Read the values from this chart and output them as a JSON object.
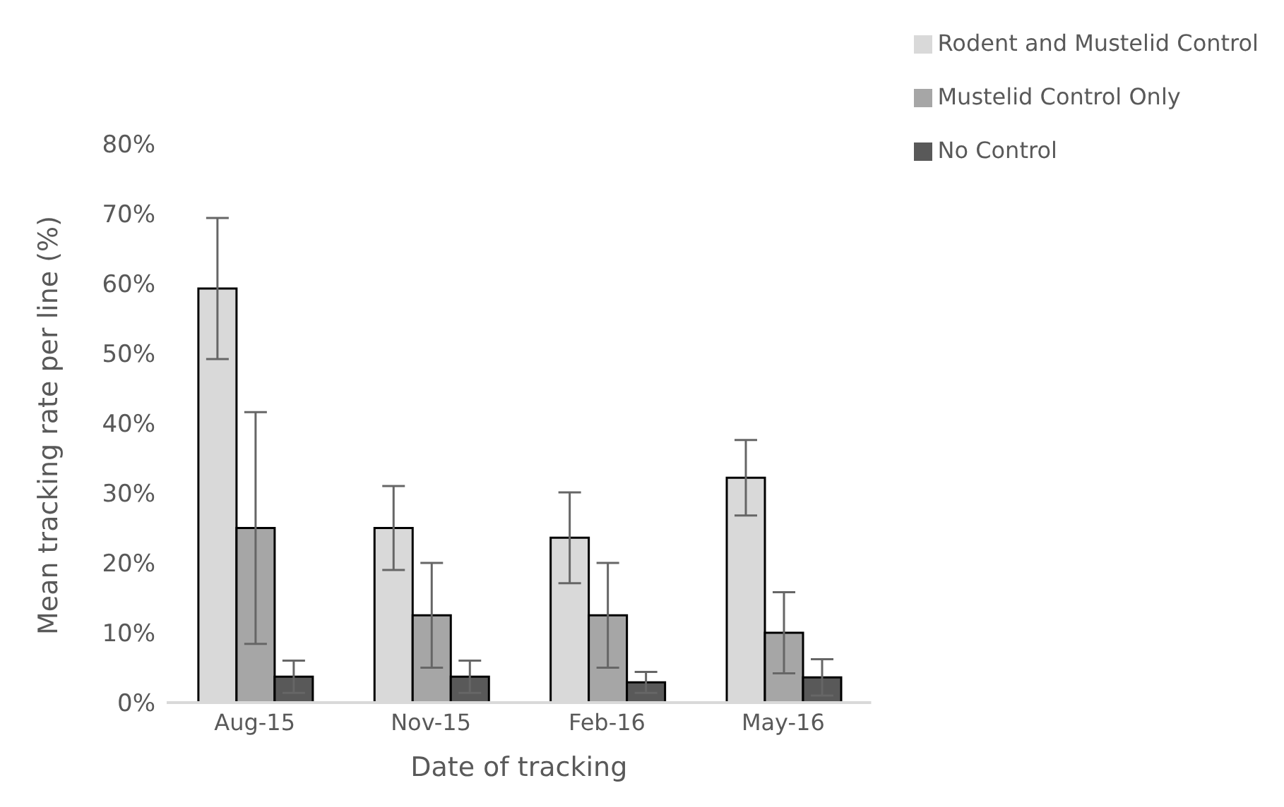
{
  "chart_data": {
    "type": "bar",
    "xlabel": "Date of tracking",
    "ylabel": "Mean tracking rate per line (%)",
    "categories": [
      "Aug-15",
      "Nov-15",
      "Feb-16",
      "May-16"
    ],
    "series": [
      {
        "name": "Rodent and Mustelid Control",
        "color": "#d9d9d9",
        "values": [
          59.3,
          25,
          23.6,
          32.2
        ],
        "errors": [
          10.1,
          6,
          6.5,
          5.4
        ]
      },
      {
        "name": "Mustelid Control Only",
        "color": "#a6a6a6",
        "values": [
          25,
          12.5,
          12.5,
          10
        ],
        "errors": [
          16.6,
          7.5,
          7.5,
          5.8
        ]
      },
      {
        "name": "No Control",
        "color": "#595959",
        "values": [
          3.7,
          3.7,
          2.9,
          3.6
        ],
        "errors": [
          2.3,
          2.3,
          1.5,
          2.6
        ]
      }
    ],
    "ylim": [
      0,
      80
    ],
    "yticks": [
      {
        "value": 0,
        "label": "0%"
      },
      {
        "value": 10,
        "label": "10%"
      },
      {
        "value": 20,
        "label": "20%"
      },
      {
        "value": 30,
        "label": "30%"
      },
      {
        "value": 40,
        "label": "40%"
      },
      {
        "value": 50,
        "label": "50%"
      },
      {
        "value": 60,
        "label": "60%"
      },
      {
        "value": 70,
        "label": "70%"
      },
      {
        "value": 80,
        "label": "80%"
      }
    ],
    "grid": false,
    "legend": "top right"
  }
}
